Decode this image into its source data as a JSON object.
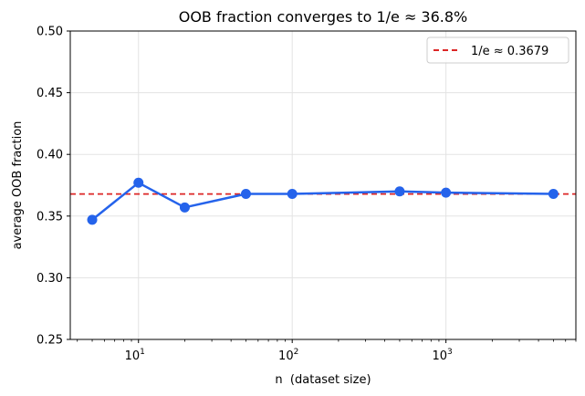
{
  "chart_data": {
    "type": "line",
    "title": "OOB fraction converges to 1/e ≈ 36.8%",
    "xlabel": "n  (dataset size)",
    "ylabel": "average OOB fraction",
    "x_scale": "log",
    "xlim": [
      3.6,
      7000
    ],
    "ylim": [
      0.25,
      0.5
    ],
    "grid": true,
    "x_ticks": [
      {
        "value": 10,
        "base": "10",
        "exp": "1"
      },
      {
        "value": 100,
        "base": "10",
        "exp": "2"
      },
      {
        "value": 1000,
        "base": "10",
        "exp": "3"
      }
    ],
    "y_ticks": [
      {
        "value": 0.25,
        "label": "0.25"
      },
      {
        "value": 0.3,
        "label": "0.30"
      },
      {
        "value": 0.35,
        "label": "0.35"
      },
      {
        "value": 0.4,
        "label": "0.40"
      },
      {
        "value": 0.45,
        "label": "0.45"
      },
      {
        "value": 0.5,
        "label": "0.50"
      }
    ],
    "series": [
      {
        "color": "#2563eb",
        "x": [
          5,
          10,
          20,
          50,
          100,
          500,
          1000,
          5000
        ],
        "y": [
          0.347,
          0.377,
          0.357,
          0.368,
          0.368,
          0.37,
          0.369,
          0.368
        ]
      }
    ],
    "reference_line": {
      "name": "1/e ≈ 0.3679",
      "value": 0.3679,
      "color": "#dc2626",
      "style": "dashed"
    },
    "legend_position": "top-right"
  }
}
